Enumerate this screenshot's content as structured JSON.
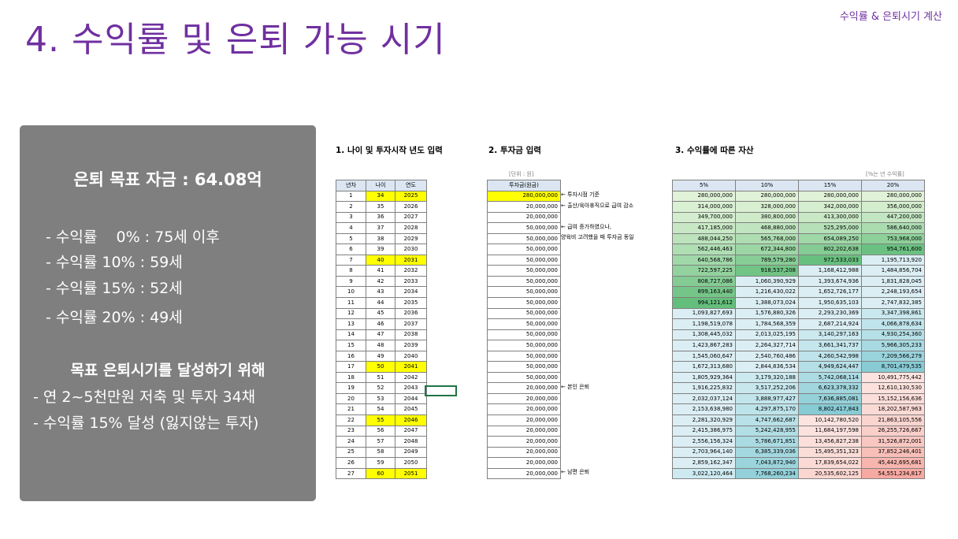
{
  "title": "4. 수익률 및 은퇴 가능 시기",
  "corner_label": "수익률 & 은퇴시기 계산",
  "panel": {
    "goal": "은퇴 목표 자금 : 64.08억",
    "rates": [
      "- 수익률    0% : 75세 이후",
      "- 수익률 10% : 59세",
      "- 수익률 15% : 52세",
      "- 수익률 20% : 49세"
    ],
    "subheading": "목표 은퇴시기를 달성하기 위해",
    "bullets": [
      "- 연 2~5천만원 저축 및 투자 34채",
      "- 수익률 15% 달성 (잃지않는 투자)"
    ]
  },
  "section1": "1. 나이 및 투자시작 년도 입력",
  "section2": "2. 투자금 입력",
  "section3": "3. 수익률에 따른 자산",
  "unit_left": "[단위 : 원]",
  "unit_right": "[%는 년 수익률]",
  "table1": {
    "headers": [
      "년차",
      "나이",
      "연도"
    ],
    "rows": [
      [
        "1",
        "34",
        "2025"
      ],
      [
        "2",
        "35",
        "2026"
      ],
      [
        "3",
        "36",
        "2027"
      ],
      [
        "4",
        "37",
        "2028"
      ],
      [
        "5",
        "38",
        "2029"
      ],
      [
        "6",
        "39",
        "2030"
      ],
      [
        "7",
        "40",
        "2031"
      ],
      [
        "8",
        "41",
        "2032"
      ],
      [
        "9",
        "42",
        "2033"
      ],
      [
        "10",
        "43",
        "2034"
      ],
      [
        "11",
        "44",
        "2035"
      ],
      [
        "12",
        "45",
        "2036"
      ],
      [
        "13",
        "46",
        "2037"
      ],
      [
        "14",
        "47",
        "2038"
      ],
      [
        "15",
        "48",
        "2039"
      ],
      [
        "16",
        "49",
        "2040"
      ],
      [
        "17",
        "50",
        "2041"
      ],
      [
        "18",
        "51",
        "2042"
      ],
      [
        "19",
        "52",
        "2043"
      ],
      [
        "20",
        "53",
        "2044"
      ],
      [
        "21",
        "54",
        "2045"
      ],
      [
        "22",
        "55",
        "2046"
      ],
      [
        "23",
        "56",
        "2047"
      ],
      [
        "24",
        "57",
        "2048"
      ],
      [
        "25",
        "58",
        "2049"
      ],
      [
        "26",
        "59",
        "2050"
      ],
      [
        "27",
        "60",
        "2051"
      ]
    ],
    "highlight_years": [
      "1",
      "7",
      "17",
      "22",
      "27"
    ]
  },
  "table2": {
    "header": "투자금(원금)",
    "rows": [
      "280,000,000",
      "20,000,000",
      "20,000,000",
      "50,000,000",
      "50,000,000",
      "50,000,000",
      "50,000,000",
      "50,000,000",
      "50,000,000",
      "50,000,000",
      "50,000,000",
      "50,000,000",
      "50,000,000",
      "50,000,000",
      "50,000,000",
      "50,000,000",
      "50,000,000",
      "50,000,000",
      "20,000,000",
      "20,000,000",
      "20,000,000",
      "20,000,000",
      "20,000,000",
      "20,000,000",
      "20,000,000",
      "20,000,000",
      "20,000,000"
    ]
  },
  "notes": [
    {
      "row": 1,
      "text": "← 투자시점 기준"
    },
    {
      "row": 2,
      "text": "← 출산/육아휴직으로 급여 감소"
    },
    {
      "row": 4,
      "text": "← 급여 증가하였으나,"
    },
    {
      "row": 5,
      "text": "양육비 고려했을 때 투자금 동일"
    },
    {
      "row": 19,
      "text": "← 본인 은퇴"
    },
    {
      "row": 27,
      "text": "← 남편 은퇴"
    }
  ],
  "table3": {
    "headers": [
      "5%",
      "10%",
      "15%",
      "20%"
    ],
    "rows": [
      [
        "280,000,000",
        "280,000,000",
        "280,000,000",
        "280,000,000"
      ],
      [
        "314,000,000",
        "328,000,000",
        "342,000,000",
        "356,000,000"
      ],
      [
        "349,700,000",
        "380,800,000",
        "413,300,000",
        "447,200,000"
      ],
      [
        "417,185,000",
        "468,880,000",
        "525,295,000",
        "586,640,000"
      ],
      [
        "488,044,250",
        "565,768,000",
        "654,089,250",
        "753,968,000"
      ],
      [
        "562,446,463",
        "672,344,800",
        "802,202,638",
        "954,761,600"
      ],
      [
        "640,568,786",
        "789,579,280",
        "972,533,033",
        "1,195,713,920"
      ],
      [
        "722,597,225",
        "918,537,208",
        "1,168,412,988",
        "1,484,856,704"
      ],
      [
        "808,727,086",
        "1,060,390,929",
        "1,393,674,936",
        "1,831,828,045"
      ],
      [
        "899,163,440",
        "1,216,430,022",
        "1,652,726,177",
        "2,248,193,654"
      ],
      [
        "994,121,612",
        "1,388,073,024",
        "1,950,635,103",
        "2,747,832,385"
      ],
      [
        "1,093,827,693",
        "1,576,880,326",
        "2,293,230,369",
        "3,347,398,861"
      ],
      [
        "1,198,519,078",
        "1,784,568,359",
        "2,687,214,924",
        "4,066,878,634"
      ],
      [
        "1,308,445,032",
        "2,013,025,195",
        "3,140,297,163",
        "4,930,254,360"
      ],
      [
        "1,423,867,283",
        "2,264,327,714",
        "3,661,341,737",
        "5,966,305,233"
      ],
      [
        "1,545,060,647",
        "2,540,760,486",
        "4,260,542,998",
        "7,209,566,279"
      ],
      [
        "1,672,313,680",
        "2,844,836,534",
        "4,949,624,447",
        "8,701,479,535"
      ],
      [
        "1,805,929,364",
        "3,179,320,188",
        "5,742,068,114",
        "10,491,775,442"
      ],
      [
        "1,916,225,832",
        "3,517,252,206",
        "6,623,378,332",
        "12,610,130,530"
      ],
      [
        "2,032,037,124",
        "3,888,977,427",
        "7,636,885,081",
        "15,152,156,636"
      ],
      [
        "2,153,638,980",
        "4,297,875,170",
        "8,802,417,843",
        "18,202,587,963"
      ],
      [
        "2,281,320,929",
        "4,747,662,687",
        "10,142,780,520",
        "21,863,105,556"
      ],
      [
        "2,415,386,975",
        "5,242,428,955",
        "11,684,197,598",
        "26,255,726,667"
      ],
      [
        "2,556,156,324",
        "5,786,671,851",
        "13,456,827,238",
        "31,526,872,001"
      ],
      [
        "2,703,964,140",
        "6,385,339,036",
        "15,495,351,323",
        "37,852,246,401"
      ],
      [
        "2,859,162,347",
        "7,043,872,940",
        "17,839,654,022",
        "45,442,695,681"
      ],
      [
        "3,022,120,464",
        "7,768,260,234",
        "20,535,602,125",
        "54,551,234,817"
      ]
    ]
  }
}
